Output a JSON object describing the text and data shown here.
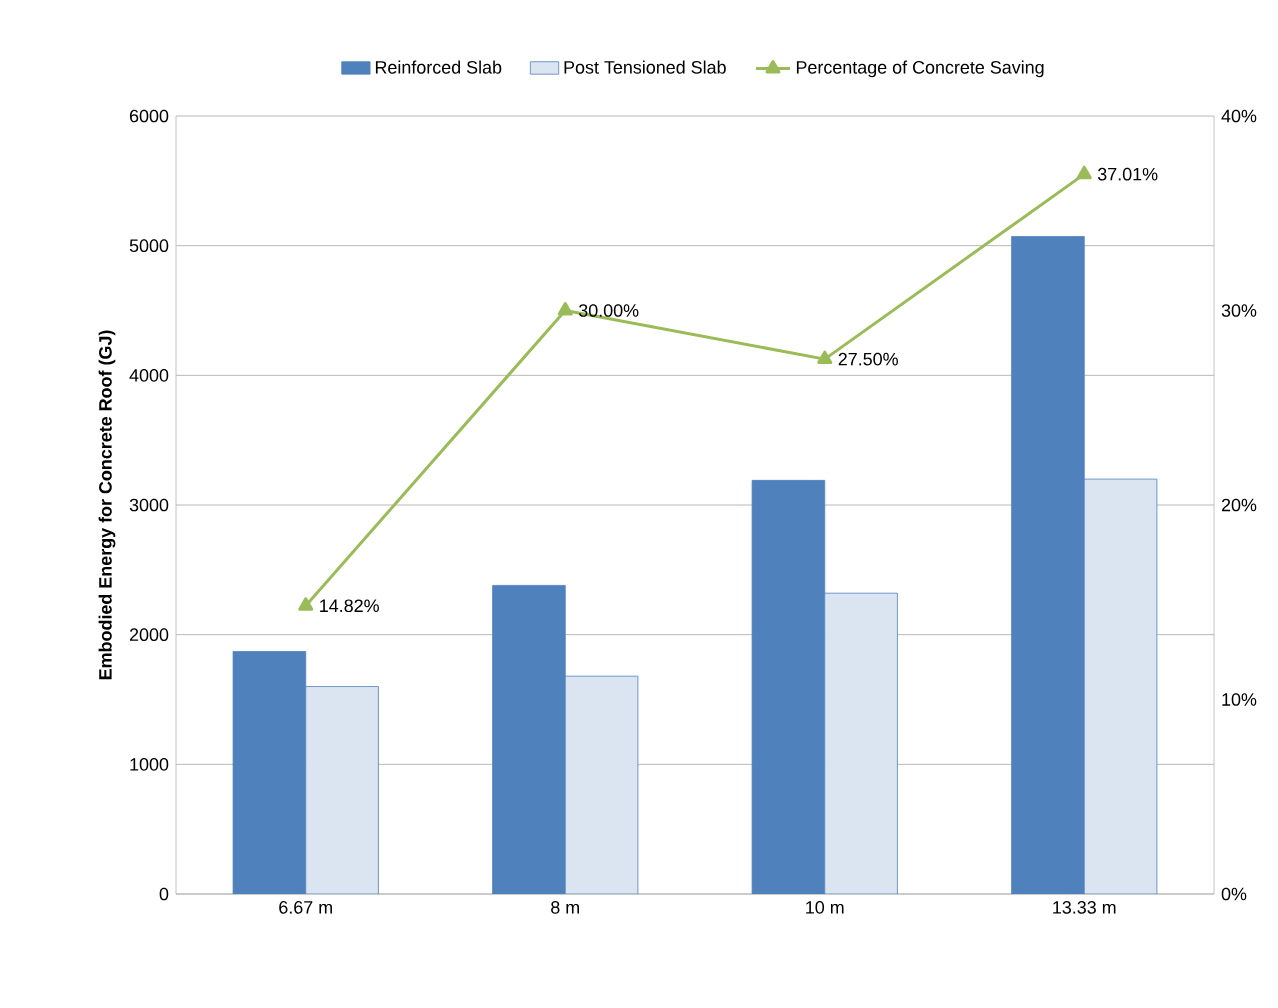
{
  "chart_data": {
    "type": "bar",
    "ylabel": "Embodied Energy for Concrete Roof (GJ)",
    "categories": [
      "6.67 m",
      "8 m",
      "10 m",
      "13.33 m"
    ],
    "series": [
      {
        "name": "Reinforced Slab",
        "color": "#4f81bd",
        "values": [
          1870,
          2380,
          3190,
          5070
        ]
      },
      {
        "name": "Post Tensioned Slab",
        "color": "#dbe5f1",
        "values": [
          1600,
          1680,
          2320,
          3200
        ]
      },
      {
        "name": "Percentage of Concrete Saving",
        "type": "line",
        "axis": "y2",
        "color": "#9bbb59",
        "marker": "triangle",
        "values": [
          14.82,
          30.0,
          27.5,
          37.01
        ],
        "value_labels": [
          "14.82%",
          "30.00%",
          "27.50%",
          "37.01%"
        ]
      }
    ],
    "ylim": [
      0,
      6000
    ],
    "yticks": [
      0,
      1000,
      2000,
      3000,
      4000,
      5000,
      6000
    ],
    "y2lim": [
      0,
      40
    ],
    "y2ticks": [
      {
        "value": 0,
        "label": "0%"
      },
      {
        "value": 10,
        "label": "10%"
      },
      {
        "value": 20,
        "label": "20%"
      },
      {
        "value": 30,
        "label": "30%"
      },
      {
        "value": 40,
        "label": "40%"
      }
    ],
    "grid": "y",
    "legend": "top"
  }
}
